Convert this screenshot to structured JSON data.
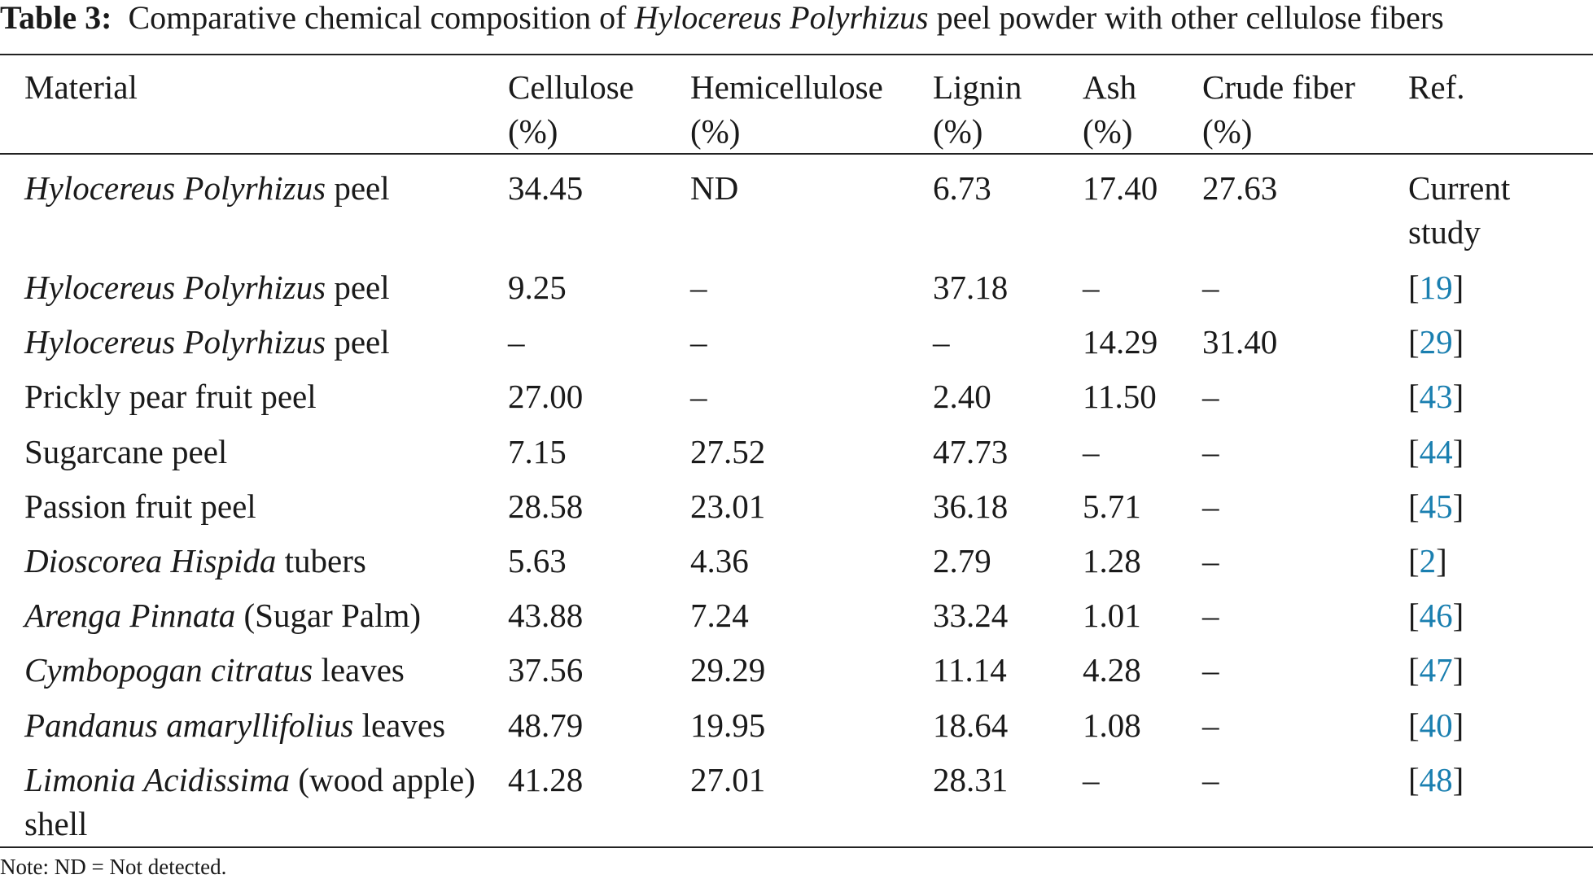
{
  "caption": {
    "label": "Table 3:",
    "text_before": "Comparative chemical composition of",
    "species": "Hylocereus Polyrhizus",
    "text_after": "peel powder with other cellulose fibers"
  },
  "columns": {
    "material": {
      "line1": "Material",
      "line2": ""
    },
    "cellulose": {
      "line1": "Cellulose",
      "line2": "(%)"
    },
    "hemicellulose": {
      "line1": "Hemicellulose",
      "line2": "(%)"
    },
    "lignin": {
      "line1": "Lignin",
      "line2": "(%)"
    },
    "ash": {
      "line1": "Ash",
      "line2": "(%)"
    },
    "crude_fiber": {
      "line1": "Crude fiber",
      "line2": "(%)"
    },
    "ref": {
      "line1": "Ref.",
      "line2": ""
    }
  },
  "rows": [
    {
      "material_italic": "Hylocereus Polyrhizus",
      "material_rest": " peel",
      "cellulose": "34.45",
      "hemicellulose": "ND",
      "lignin": "6.73",
      "ash": "17.40",
      "crude_fiber": "27.63",
      "ref_text": "Current study",
      "ref_open": "",
      "ref_num": "",
      "ref_close": ""
    },
    {
      "material_italic": "Hylocereus Polyrhizus",
      "material_rest": " peel",
      "cellulose": "9.25",
      "hemicellulose": "–",
      "lignin": "37.18",
      "ash": "–",
      "crude_fiber": "–",
      "ref_text": "",
      "ref_open": "[",
      "ref_num": "19",
      "ref_close": "]"
    },
    {
      "material_italic": "Hylocereus Polyrhizus",
      "material_rest": " peel",
      "cellulose": "–",
      "hemicellulose": "–",
      "lignin": "–",
      "ash": "14.29",
      "crude_fiber": "31.40",
      "ref_text": "",
      "ref_open": "[",
      "ref_num": "29",
      "ref_close": "]"
    },
    {
      "material_italic": "",
      "material_rest": "Prickly pear fruit peel",
      "cellulose": "27.00",
      "hemicellulose": "–",
      "lignin": "2.40",
      "ash": "11.50",
      "crude_fiber": "–",
      "ref_text": "",
      "ref_open": "[",
      "ref_num": "43",
      "ref_close": "]"
    },
    {
      "material_italic": "",
      "material_rest": "Sugarcane peel",
      "cellulose": "7.15",
      "hemicellulose": "27.52",
      "lignin": "47.73",
      "ash": "–",
      "crude_fiber": "–",
      "ref_text": "",
      "ref_open": "[",
      "ref_num": "44",
      "ref_close": "]"
    },
    {
      "material_italic": "",
      "material_rest": "Passion fruit peel",
      "cellulose": "28.58",
      "hemicellulose": "23.01",
      "lignin": "36.18",
      "ash": "5.71",
      "crude_fiber": "–",
      "ref_text": "",
      "ref_open": "[",
      "ref_num": "45",
      "ref_close": "]"
    },
    {
      "material_italic": "Dioscorea Hispida",
      "material_rest": " tubers",
      "cellulose": "5.63",
      "hemicellulose": "4.36",
      "lignin": "2.79",
      "ash": "1.28",
      "crude_fiber": "–",
      "ref_text": "",
      "ref_open": "[",
      "ref_num": "2",
      "ref_close": "]"
    },
    {
      "material_italic": "Arenga Pinnata",
      "material_rest": " (Sugar Palm)",
      "cellulose": "43.88",
      "hemicellulose": "7.24",
      "lignin": "33.24",
      "ash": "1.01",
      "crude_fiber": "–",
      "ref_text": "",
      "ref_open": "[",
      "ref_num": "46",
      "ref_close": "]"
    },
    {
      "material_italic": "Cymbopogan citratus",
      "material_rest": " leaves",
      "cellulose": "37.56",
      "hemicellulose": "29.29",
      "lignin": "11.14",
      "ash": "4.28",
      "crude_fiber": "–",
      "ref_text": "",
      "ref_open": "[",
      "ref_num": "47",
      "ref_close": "]"
    },
    {
      "material_italic": "Pandanus amaryllifolius",
      "material_rest": " leaves",
      "cellulose": "48.79",
      "hemicellulose": "19.95",
      "lignin": "18.64",
      "ash": "1.08",
      "crude_fiber": "–",
      "ref_text": "",
      "ref_open": "[",
      "ref_num": "40",
      "ref_close": "]"
    },
    {
      "material_italic": "Limonia Acidissima",
      "material_rest": " (wood apple) shell",
      "cellulose": "41.28",
      "hemicellulose": "27.01",
      "lignin": "28.31",
      "ash": "–",
      "crude_fiber": "–",
      "ref_text": "",
      "ref_open": "[",
      "ref_num": "48",
      "ref_close": "]"
    }
  ],
  "note": "Note: ND = Not detected.",
  "colors": {
    "link": "#1a7fb0",
    "text": "#1a1a1a",
    "rule": "#222222"
  }
}
